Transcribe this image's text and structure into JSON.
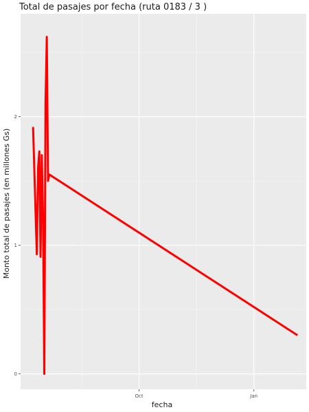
{
  "chart_data": {
    "type": "line",
    "title": "Total de pasajes por fecha (ruta 0183 / 3 )",
    "xlabel": "fecha",
    "ylabel": "Monto total de pasajes (en millones Gs)",
    "x_ticks": [
      {
        "label": "Oct",
        "date": "2020-10-01"
      },
      {
        "label": "Jan",
        "date": "2021-01-01"
      }
    ],
    "y_ticks": [
      0,
      1,
      2
    ],
    "xlim": [
      "2020-06-28",
      "2021-02-12"
    ],
    "ylim": [
      -0.12,
      2.8
    ],
    "grid": true,
    "series": [
      {
        "color": "#ff0000",
        "points": [
          {
            "x": "2020-07-08",
            "y": 1.92
          },
          {
            "x": "2020-07-11",
            "y": 0.93
          },
          {
            "x": "2020-07-12",
            "y": 1.6
          },
          {
            "x": "2020-07-13",
            "y": 1.73
          },
          {
            "x": "2020-07-14",
            "y": 0.91
          },
          {
            "x": "2020-07-15",
            "y": 1.7
          },
          {
            "x": "2020-07-16",
            "y": 1.2
          },
          {
            "x": "2020-07-17",
            "y": 0.0
          },
          {
            "x": "2020-07-18",
            "y": 2.1
          },
          {
            "x": "2020-07-19",
            "y": 2.62
          },
          {
            "x": "2020-07-20",
            "y": 1.5
          },
          {
            "x": "2020-07-21",
            "y": 1.55
          },
          {
            "x": "2021-02-05",
            "y": 0.3
          }
        ]
      }
    ]
  }
}
